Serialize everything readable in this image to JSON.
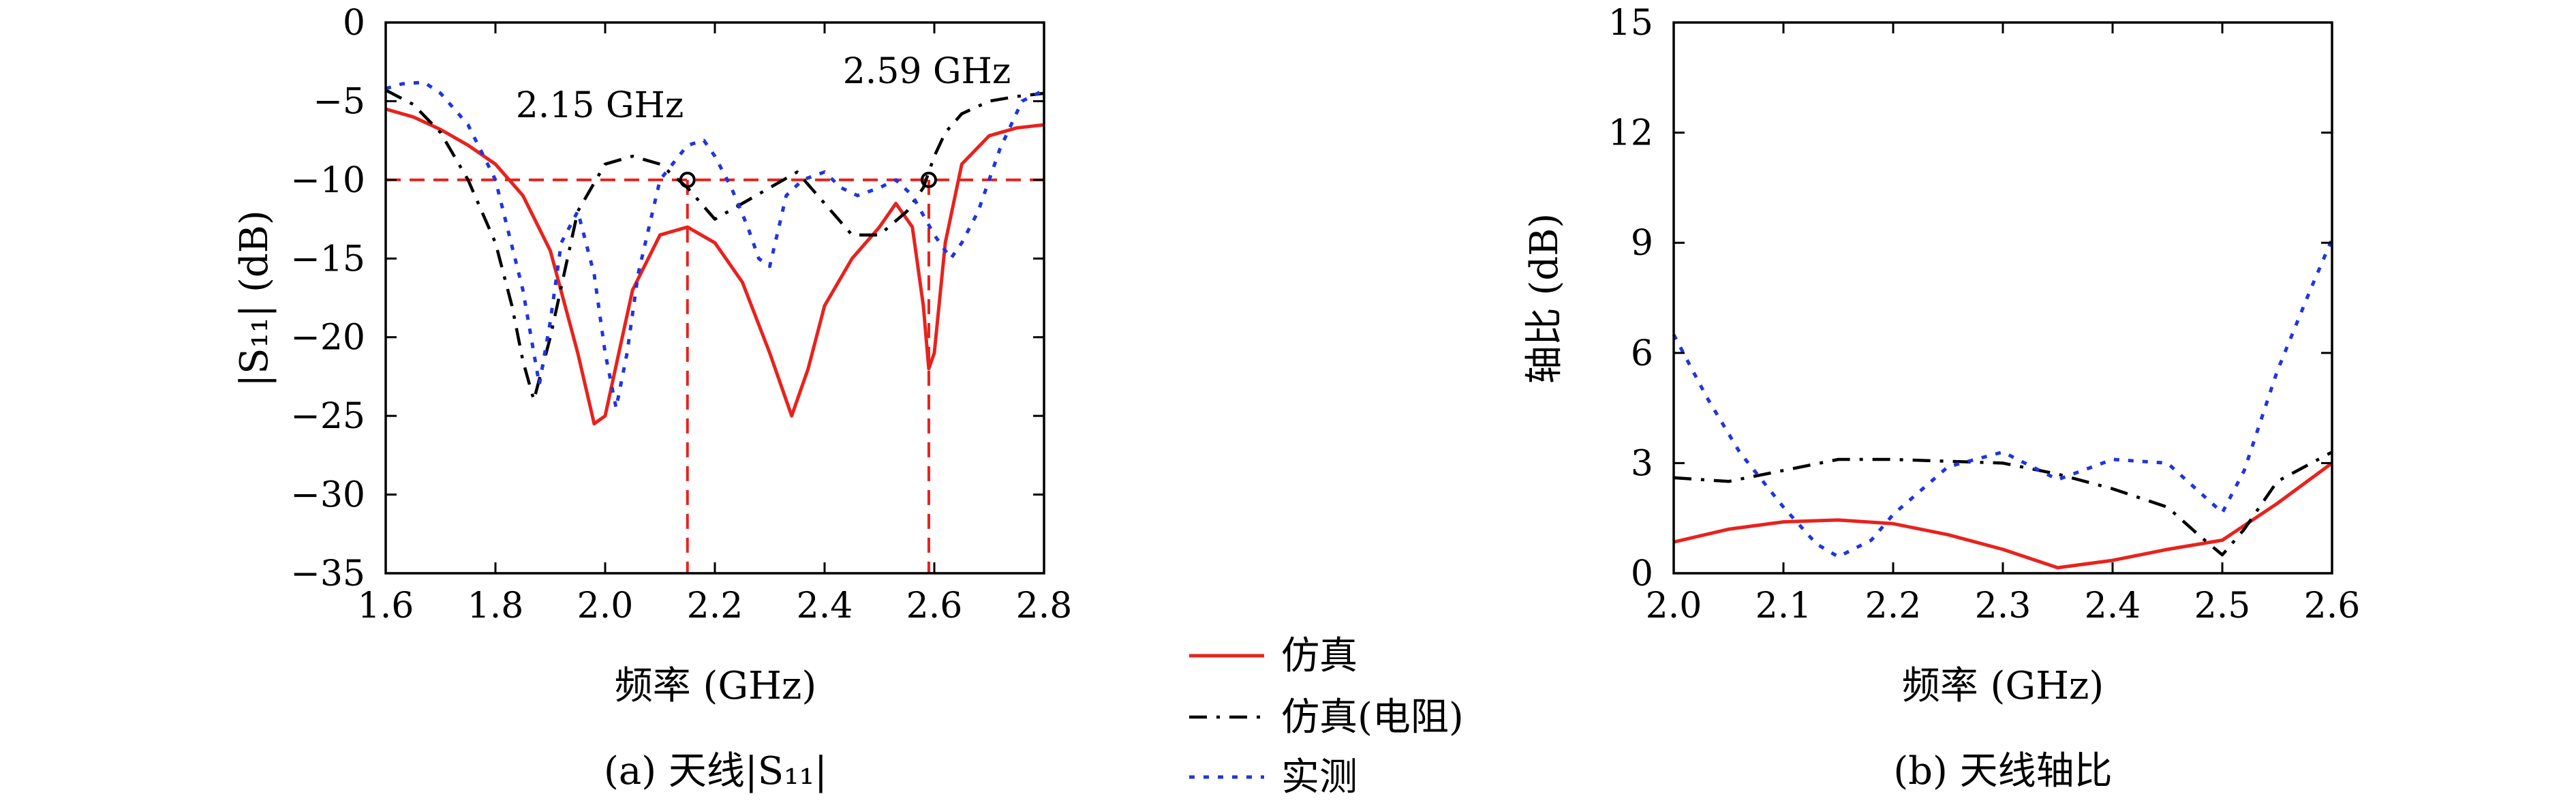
{
  "legend": {
    "entries": [
      {
        "name": "仿真",
        "color": "#e8221d",
        "dash": "solid"
      },
      {
        "name": "仿真(电阻)",
        "color": "#000000",
        "dash": "dashdot"
      },
      {
        "name": "实测",
        "color": "#1f35e0",
        "dash": "dotted"
      }
    ]
  },
  "chart_data": [
    {
      "type": "line",
      "caption": "(a) 天线|S₁₁|",
      "xlabel": "频率 (GHz)",
      "ylabel": "|S₁₁| (dB)",
      "xlim": [
        1.6,
        2.8
      ],
      "ylim": [
        -35,
        0
      ],
      "xticks": [
        1.6,
        1.8,
        2.0,
        2.2,
        2.4,
        2.6,
        2.8
      ],
      "xtick_labels": [
        "1.6",
        "1.8",
        "2.0",
        "2.2",
        "2.4",
        "2.6",
        "2.8"
      ],
      "yticks": [
        0,
        -5,
        -10,
        -15,
        -20,
        -25,
        -30,
        -35
      ],
      "ytick_labels": [
        "0",
        "−5",
        "−10",
        "−15",
        "−20",
        "−25",
        "−30",
        "−35"
      ],
      "reference_line": {
        "y": -10,
        "color": "#e8221d"
      },
      "markers": [
        {
          "x": 2.15,
          "y": -10,
          "label": "2.15 GHz"
        },
        {
          "x": 2.59,
          "y": -10,
          "label": "2.59 GHz"
        }
      ],
      "series": [
        {
          "name": "仿真",
          "x": [
            1.6,
            1.65,
            1.7,
            1.75,
            1.8,
            1.85,
            1.9,
            1.95,
            1.98,
            2.0,
            2.05,
            2.1,
            2.15,
            2.2,
            2.25,
            2.3,
            2.34,
            2.37,
            2.4,
            2.45,
            2.5,
            2.53,
            2.56,
            2.58,
            2.59,
            2.6,
            2.62,
            2.65,
            2.7,
            2.75,
            2.8
          ],
          "y": [
            -5.5,
            -6,
            -6.8,
            -7.8,
            -9,
            -11,
            -14.5,
            -21,
            -25.5,
            -25,
            -17,
            -13.5,
            -13,
            -14,
            -16.5,
            -21,
            -25,
            -22,
            -18,
            -15,
            -13,
            -11.5,
            -13,
            -18,
            -22,
            -21,
            -14,
            -9,
            -7.2,
            -6.7,
            -6.5
          ]
        },
        {
          "name": "仿真(电阻)",
          "x": [
            1.6,
            1.65,
            1.7,
            1.75,
            1.8,
            1.83,
            1.85,
            1.87,
            1.9,
            1.95,
            2.0,
            2.05,
            2.1,
            2.15,
            2.2,
            2.25,
            2.3,
            2.35,
            2.4,
            2.45,
            2.5,
            2.55,
            2.58,
            2.6,
            2.62,
            2.65,
            2.7,
            2.75,
            2.8
          ],
          "y": [
            -4.3,
            -5.2,
            -7,
            -10,
            -14,
            -18,
            -21.5,
            -24,
            -20,
            -12,
            -9,
            -8.5,
            -9,
            -10.5,
            -12.5,
            -11.5,
            -10.5,
            -9.5,
            -11.5,
            -13.5,
            -13.5,
            -12,
            -10.5,
            -8.5,
            -7,
            -5.8,
            -5,
            -4.7,
            -4.5
          ]
        },
        {
          "name": "实测",
          "x": [
            1.6,
            1.63,
            1.67,
            1.7,
            1.75,
            1.8,
            1.85,
            1.88,
            1.9,
            1.92,
            1.95,
            1.98,
            2.0,
            2.02,
            2.04,
            2.06,
            2.1,
            2.15,
            2.18,
            2.2,
            2.23,
            2.26,
            2.28,
            2.3,
            2.33,
            2.36,
            2.4,
            2.43,
            2.46,
            2.5,
            2.53,
            2.56,
            2.6,
            2.63,
            2.65,
            2.68,
            2.72,
            2.76,
            2.8
          ],
          "y": [
            -4.2,
            -3.9,
            -3.8,
            -4.5,
            -6.5,
            -10,
            -17,
            -23,
            -19,
            -14,
            -12,
            -16,
            -21,
            -24.5,
            -21,
            -16,
            -10,
            -7.8,
            -7.5,
            -8.5,
            -10.5,
            -13,
            -15,
            -15.5,
            -11,
            -10,
            -9.5,
            -10.5,
            -11,
            -10.5,
            -10,
            -11,
            -13.5,
            -15,
            -14,
            -12,
            -8,
            -5,
            -4.3
          ]
        }
      ]
    },
    {
      "type": "line",
      "caption": "(b) 天线轴比",
      "xlabel": "频率 (GHz)",
      "ylabel": "轴比 (dB)",
      "xlim": [
        2.0,
        2.6
      ],
      "ylim": [
        0,
        15
      ],
      "xticks": [
        2.0,
        2.1,
        2.2,
        2.3,
        2.4,
        2.5,
        2.6
      ],
      "xtick_labels": [
        "2.0",
        "2.1",
        "2.2",
        "2.3",
        "2.4",
        "2.5",
        "2.6"
      ],
      "yticks": [
        0,
        3,
        6,
        9,
        12,
        15
      ],
      "ytick_labels": [
        "0",
        "3",
        "6",
        "9",
        "12",
        "15"
      ],
      "series": [
        {
          "name": "仿真",
          "x": [
            2.0,
            2.05,
            2.1,
            2.15,
            2.2,
            2.25,
            2.3,
            2.35,
            2.4,
            2.45,
            2.5,
            2.55,
            2.6
          ],
          "y": [
            0.85,
            1.2,
            1.4,
            1.45,
            1.35,
            1.05,
            0.65,
            0.15,
            0.35,
            0.65,
            0.9,
            1.9,
            3.0
          ]
        },
        {
          "name": "仿真(电阻)",
          "x": [
            2.0,
            2.05,
            2.1,
            2.15,
            2.2,
            2.25,
            2.3,
            2.35,
            2.4,
            2.45,
            2.48,
            2.5,
            2.52,
            2.55,
            2.6
          ],
          "y": [
            2.6,
            2.5,
            2.8,
            3.1,
            3.1,
            3.05,
            3.0,
            2.7,
            2.3,
            1.8,
            1.0,
            0.5,
            1.2,
            2.5,
            3.3
          ]
        },
        {
          "name": "实测",
          "x": [
            2.0,
            2.03,
            2.06,
            2.1,
            2.13,
            2.15,
            2.18,
            2.2,
            2.25,
            2.3,
            2.35,
            2.4,
            2.45,
            2.5,
            2.52,
            2.55,
            2.58,
            2.6
          ],
          "y": [
            6.5,
            4.8,
            3.3,
            1.8,
            0.8,
            0.45,
            0.9,
            1.6,
            2.9,
            3.3,
            2.55,
            3.1,
            3.0,
            1.65,
            2.8,
            5.5,
            7.7,
            9.1
          ]
        }
      ]
    }
  ]
}
